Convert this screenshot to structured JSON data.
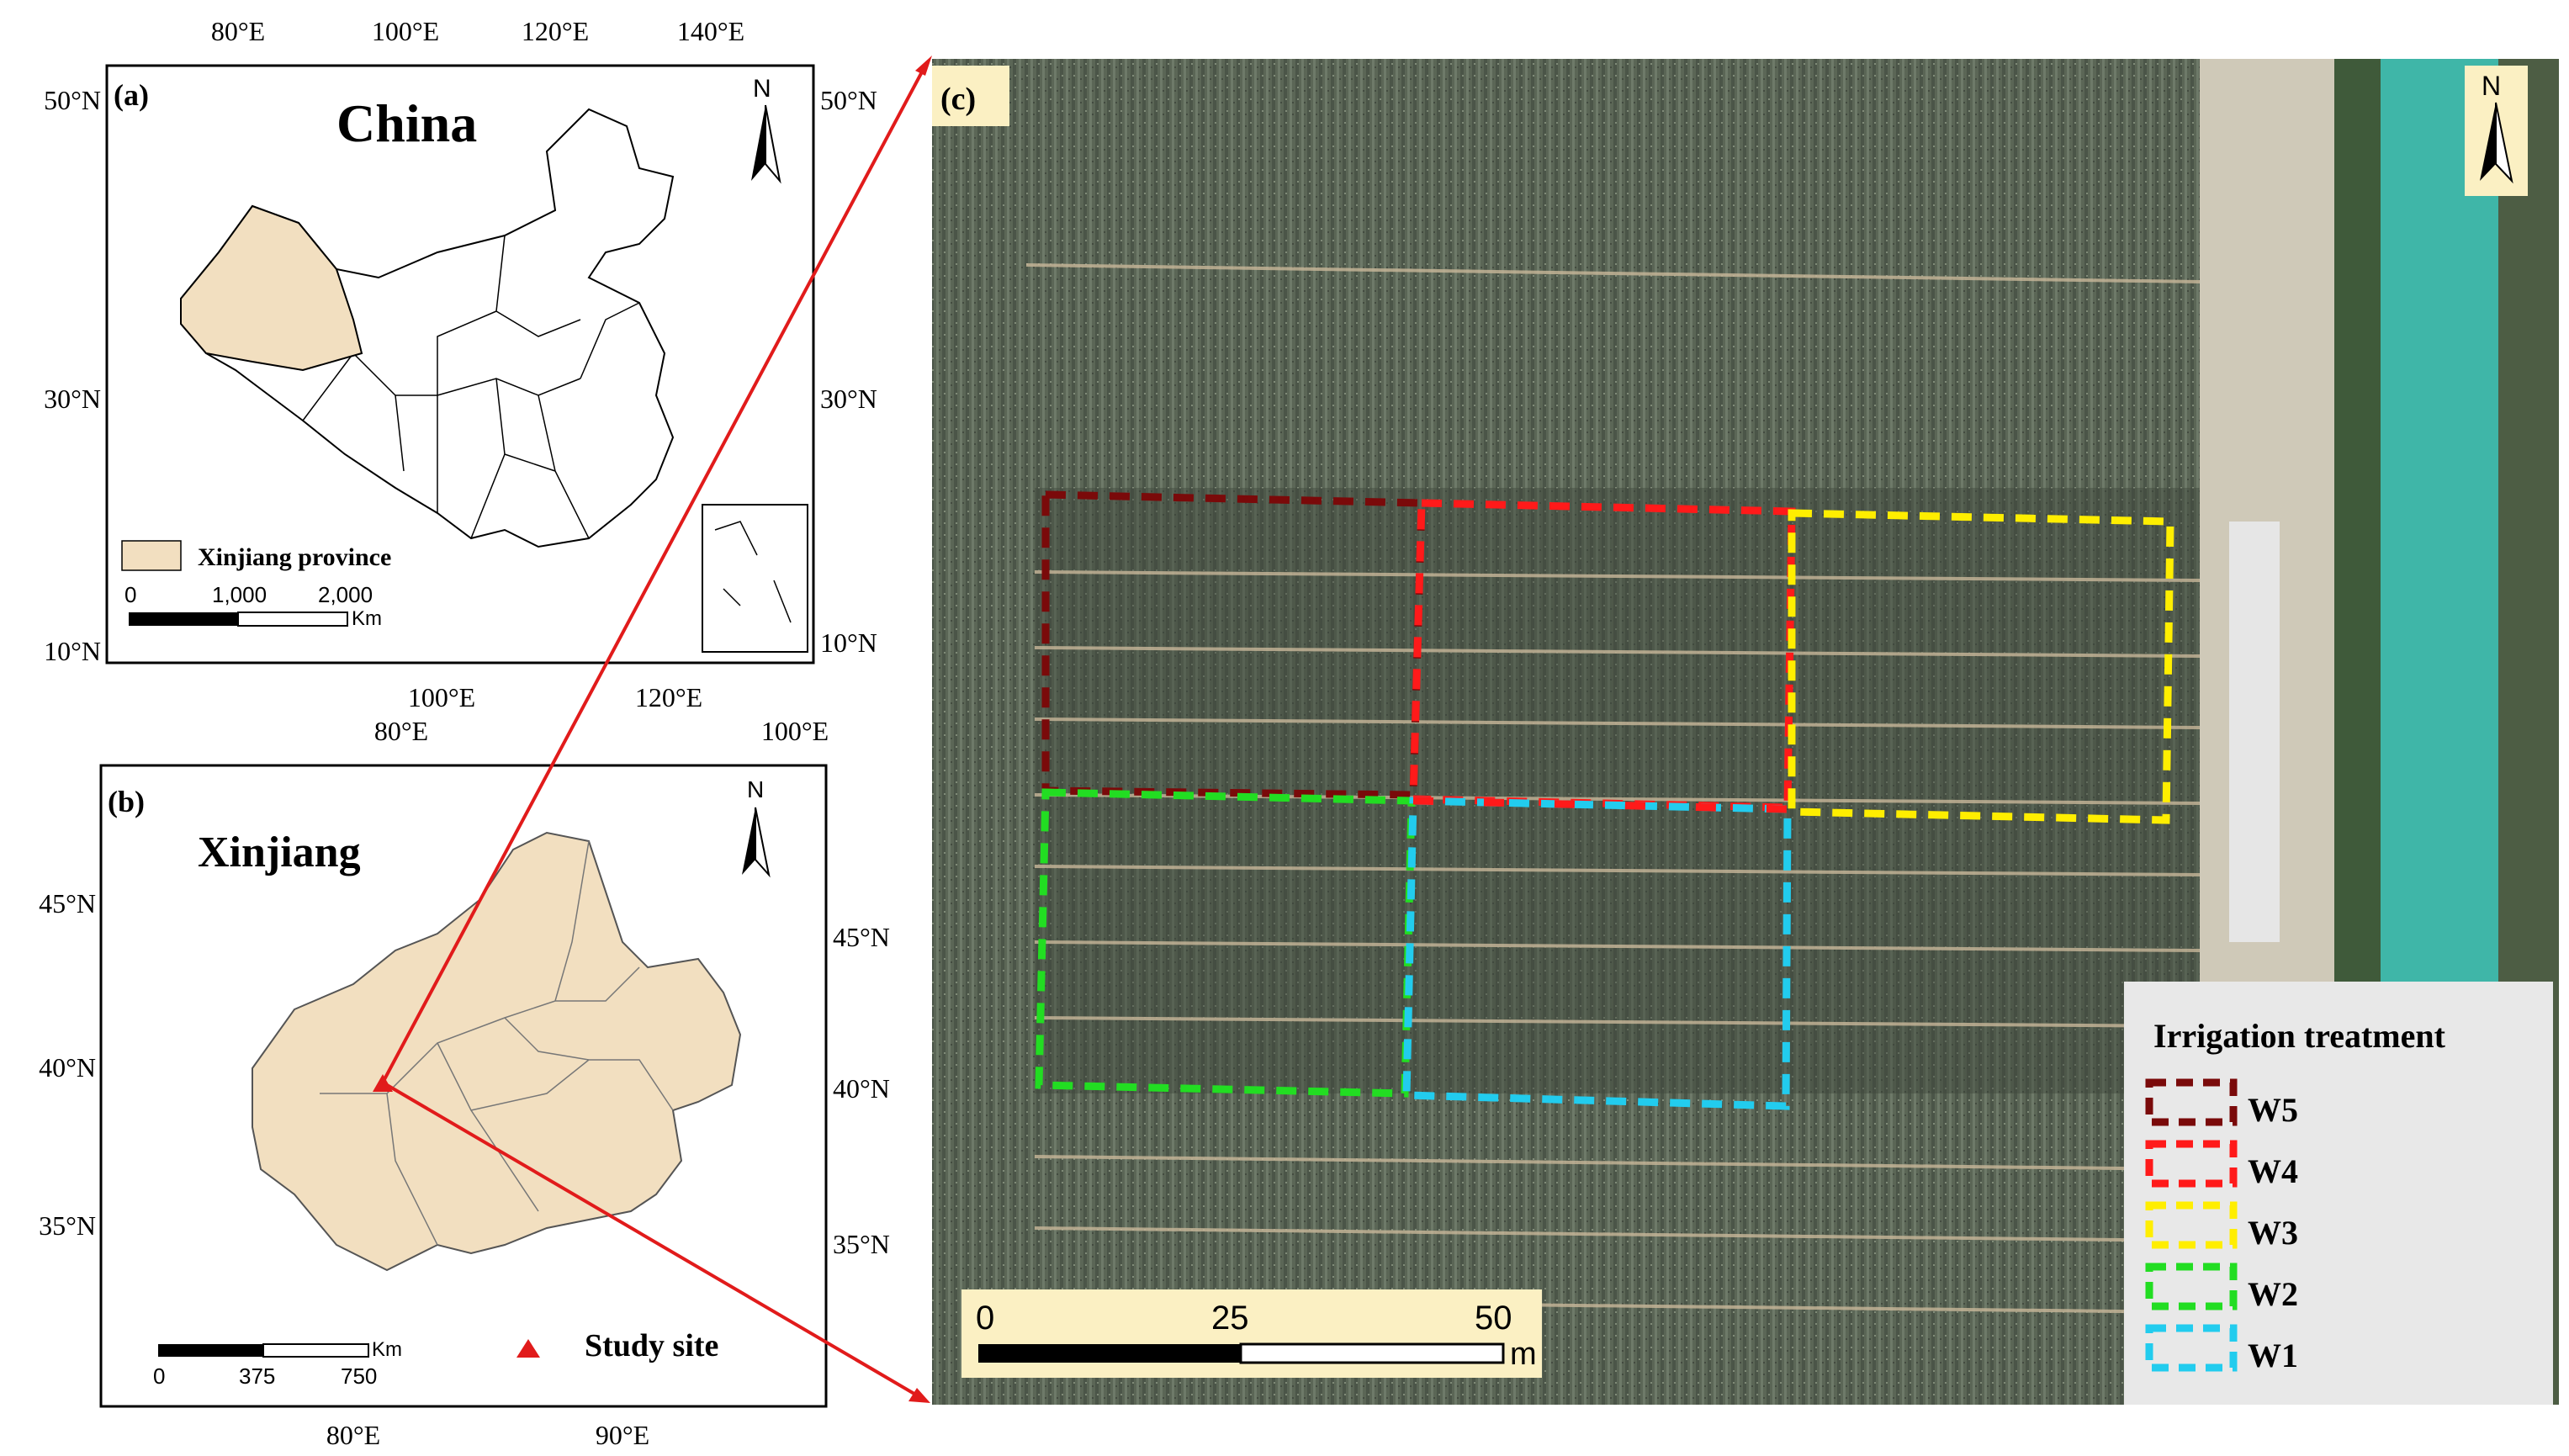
{
  "panel_a": {
    "tag": "(a)",
    "title": "China",
    "top_ticks": [
      "80°E",
      "100°E",
      "120°E",
      "140°E"
    ],
    "bottom_ticks": [
      "100°E",
      "120°E"
    ],
    "left_ticks": [
      "50°N",
      "30°N",
      "10°N"
    ],
    "right_ticks": [
      "50°N",
      "30°N",
      "10°N"
    ],
    "legend_label": "Xinjiang province",
    "scale_labels": [
      "0",
      "1,000",
      "2,000"
    ],
    "scale_unit": "Km",
    "north": "N"
  },
  "panel_b": {
    "tag": "(b)",
    "title": "Xinjiang",
    "top_ticks": [
      "80°E",
      "100°E"
    ],
    "bottom_ticks": [
      "80°E",
      "90°E"
    ],
    "left_ticks": [
      "45°N",
      "40°N",
      "35°N"
    ],
    "right_ticks": [
      "45°N",
      "40°N",
      "35°N"
    ],
    "scale_labels": [
      "0",
      "375",
      "750"
    ],
    "scale_unit": "Km",
    "study_site_label": "Study site",
    "north": "N"
  },
  "panel_c": {
    "tag": "(c)",
    "north": "N",
    "scale_labels": [
      "0",
      "25",
      "50"
    ],
    "scale_unit": "m",
    "legend_title": "Irrigation treatment",
    "treatments": [
      {
        "label": "W5",
        "color": "#7a0a0a"
      },
      {
        "label": "W4",
        "color": "#ff1a1a"
      },
      {
        "label": "W3",
        "color": "#ffee00"
      },
      {
        "label": "W2",
        "color": "#22dd22"
      },
      {
        "label": "W1",
        "color": "#22ccee"
      }
    ]
  },
  "colors": {
    "xinjiang_fill": "#f2dfc0",
    "pointer": "#e11b1b",
    "field": "#5f6a5a",
    "canal": "#3fb6a8"
  }
}
